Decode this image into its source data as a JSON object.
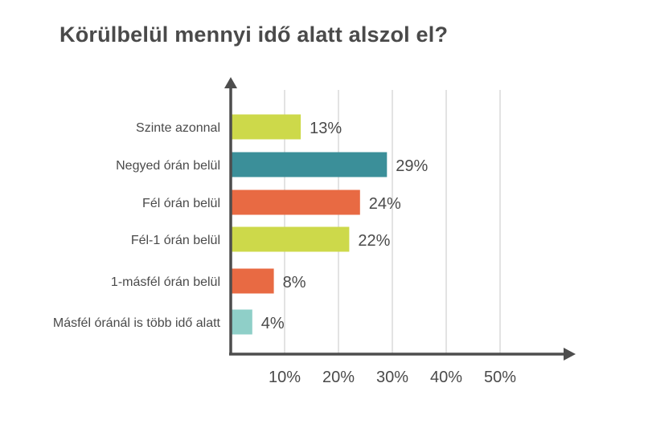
{
  "title": "Körülbelül mennyi idő alatt alszol el?",
  "chart_data": {
    "type": "bar",
    "orientation": "horizontal",
    "title": "Körülbelül mennyi idő alatt alszol el?",
    "xlabel": "",
    "ylabel": "",
    "xlim": [
      0,
      60
    ],
    "grid": true,
    "categories": [
      "Szinte azonnal",
      "Negyed órán belül",
      "Fél órán belül",
      "Fél-1 órán belül",
      "1-másfél órán belül",
      "Másfél óránál is több idő alatt"
    ],
    "values": [
      13,
      29,
      24,
      22,
      8,
      4
    ],
    "value_labels": [
      "13%",
      "29%",
      "24%",
      "22%",
      "8%",
      "4%"
    ],
    "bar_colors": [
      "#cdd94a",
      "#3b8f99",
      "#e86a43",
      "#cdd94a",
      "#e86a43",
      "#8fcfc8"
    ],
    "x_ticks": [
      10,
      20,
      30,
      40,
      50
    ],
    "x_tick_labels": [
      "10%",
      "20%",
      "30%",
      "40%",
      "50%"
    ],
    "colors": {
      "axis": "#4d4d4d",
      "grid": "#d0d0d0",
      "text": "#4a4a4a"
    }
  }
}
